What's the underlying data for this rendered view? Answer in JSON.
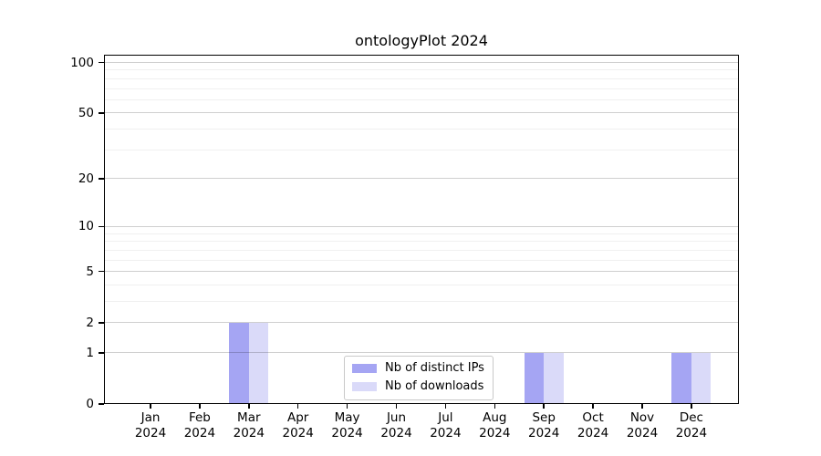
{
  "chart_data": {
    "type": "bar",
    "title": "ontologyPlot 2024",
    "categories": [
      "Jan 2024",
      "Feb 2024",
      "Mar 2024",
      "Apr 2024",
      "May 2024",
      "Jun 2024",
      "Jul 2024",
      "Aug 2024",
      "Sep 2024",
      "Oct 2024",
      "Nov 2024",
      "Dec 2024"
    ],
    "series": [
      {
        "name": "Nb of distinct IPs",
        "color": "#a5a5f3",
        "values": [
          0,
          0,
          2,
          0,
          0,
          0,
          0,
          0,
          1,
          0,
          0,
          1
        ]
      },
      {
        "name": "Nb of downloads",
        "color": "#dadaf9",
        "values": [
          0,
          0,
          2,
          0,
          0,
          0,
          0,
          0,
          1,
          0,
          0,
          1
        ]
      }
    ],
    "xlabel": "",
    "ylabel": "",
    "yscale": "log1p",
    "ylim": [
      0,
      111
    ],
    "yticks": [
      0,
      1,
      2,
      5,
      10,
      20,
      50,
      100
    ],
    "yticks_minor": [
      3,
      4,
      6,
      7,
      8,
      9,
      30,
      40,
      60,
      70,
      80,
      90
    ],
    "grid": "horizontal-major-and-minor",
    "legend_position": "inside-bottom-center",
    "legend_labels": [
      "Nb of distinct IPs",
      "Nb of downloads"
    ]
  }
}
